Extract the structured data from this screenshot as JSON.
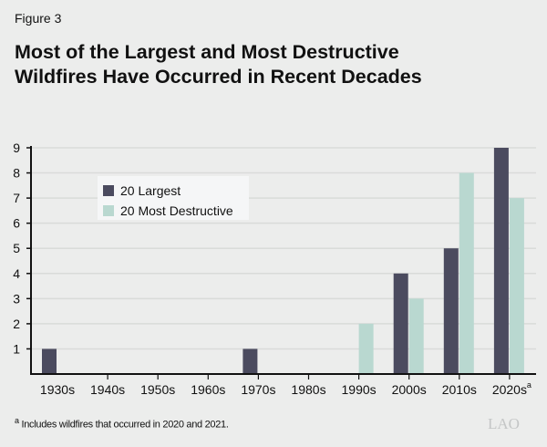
{
  "figure_label": "Figure 3",
  "title_line1": "Most of the Largest and Most Destructive",
  "title_line2": "Wildfires Have Occurred in Recent Decades",
  "footnote_marker": "a",
  "footnote": "Includes wildfires that occurred in 2020 and 2021.",
  "logo": "LAO",
  "chart_data": {
    "type": "bar",
    "categories": [
      "1930s",
      "1940s",
      "1950s",
      "1960s",
      "1970s",
      "1980s",
      "1990s",
      "2000s",
      "2010s",
      "2020s"
    ],
    "category_footnote": {
      "2020s": "a"
    },
    "series": [
      {
        "name": "20 Largest",
        "color": "#4b4b5f",
        "values": [
          1,
          0,
          0,
          0,
          1,
          0,
          0,
          4,
          5,
          9
        ]
      },
      {
        "name": "20 Most Destructive",
        "color": "#b9d8d0",
        "values": [
          0,
          0,
          0,
          0,
          0,
          0,
          2,
          3,
          8,
          7
        ]
      }
    ],
    "ylim": [
      0,
      9
    ],
    "yticks": [
      1,
      2,
      3,
      4,
      5,
      6,
      7,
      8,
      9
    ],
    "grid": true,
    "legend": "upper-left",
    "xlabel": "",
    "ylabel": ""
  }
}
